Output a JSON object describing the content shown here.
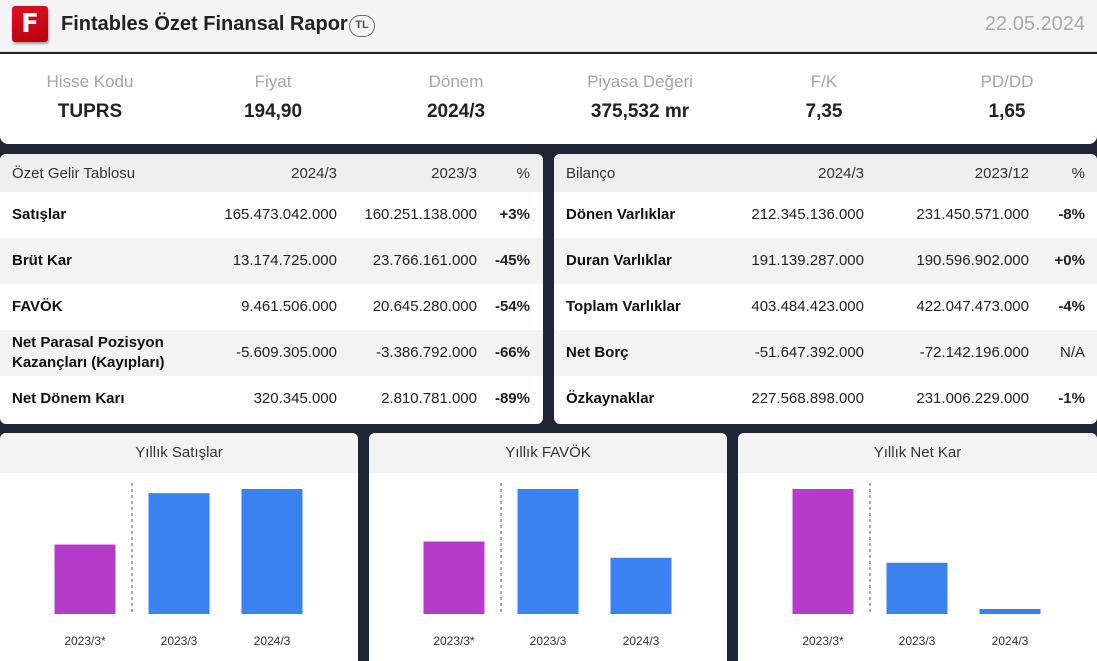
{
  "header": {
    "logo_letter": "F",
    "title": "Fintables Özet Finansal Rapor",
    "currency": "TL",
    "date": "22.05.2024"
  },
  "summary": [
    {
      "label": "Hisse Kodu",
      "value": "TUPRS"
    },
    {
      "label": "Fiyat",
      "value": "194,90"
    },
    {
      "label": "Dönem",
      "value": "2024/3"
    },
    {
      "label": "Piyasa Değeri",
      "value": "375,532 mr"
    },
    {
      "label": "F/K",
      "value": "7,35"
    },
    {
      "label": "PD/DD",
      "value": "1,65"
    }
  ],
  "income": {
    "headers": [
      "Özet Gelir Tablosu",
      "2024/3",
      "2023/3",
      "%"
    ],
    "rows": [
      {
        "label": "Satışlar",
        "cur": "165.473.042.000",
        "prev": "160.251.138.000",
        "pct": "+3%",
        "dir": "pos"
      },
      {
        "label": "Brüt Kar",
        "cur": "13.174.725.000",
        "prev": "23.766.161.000",
        "pct": "-45%",
        "dir": "neg"
      },
      {
        "label": "FAVÖK",
        "cur": "9.461.506.000",
        "prev": "20.645.280.000",
        "pct": "-54%",
        "dir": "neg"
      },
      {
        "label_lines": [
          "Net Parasal Pozisyon",
          "Kazançları (Kayıpları)"
        ],
        "cur": "-5.609.305.000",
        "prev": "-3.386.792.000",
        "pct": "-66%",
        "dir": "neg"
      },
      {
        "label": "Net Dönem Karı",
        "cur": "320.345.000",
        "prev": "2.810.781.000",
        "pct": "-89%",
        "dir": "neg"
      }
    ]
  },
  "balance": {
    "headers": [
      "Bilanço",
      "2024/3",
      "2023/12",
      "%"
    ],
    "rows": [
      {
        "label": "Dönen Varlıklar",
        "cur": "212.345.136.000",
        "prev": "231.450.571.000",
        "pct": "-8%",
        "dir": "neg"
      },
      {
        "label": "Duran Varlıklar",
        "cur": "191.139.287.000",
        "prev": "190.596.902.000",
        "pct": "+0%",
        "dir": "pos"
      },
      {
        "label": "Toplam Varlıklar",
        "cur": "403.484.423.000",
        "prev": "422.047.473.000",
        "pct": "-4%",
        "dir": "neg"
      },
      {
        "label": "Net Borç",
        "cur": "-51.647.392.000",
        "prev": "-72.142.196.000",
        "pct": "N/A",
        "dir": "na"
      },
      {
        "label": "Özkaynaklar",
        "cur": "227.568.898.000",
        "prev": "231.006.229.000",
        "pct": "-1%",
        "dir": "neg"
      }
    ]
  },
  "colors": {
    "highlight_bar": "#b43cc8",
    "bar": "#3b82f0",
    "positive": "#1db36b",
    "negative": "#e53945"
  },
  "chart_data": [
    {
      "type": "bar",
      "title": "Yıllık Satışlar",
      "categories": [
        "2023/3*",
        "2023/3",
        "2024/3"
      ],
      "values": [
        100,
        174,
        180
      ],
      "highlight_index": 0,
      "divider_after": 0
    },
    {
      "type": "bar",
      "title": "Yıllık FAVÖK",
      "categories": [
        "2023/3*",
        "2023/3",
        "2024/3"
      ],
      "values": [
        58,
        100,
        45
      ],
      "highlight_index": 0,
      "divider_after": 0
    },
    {
      "type": "bar",
      "title": "Yıllık Net Kar",
      "categories": [
        "2023/3*",
        "2023/3",
        "2024/3"
      ],
      "values": [
        100,
        41,
        4
      ],
      "highlight_index": 0,
      "divider_after": 0
    }
  ]
}
